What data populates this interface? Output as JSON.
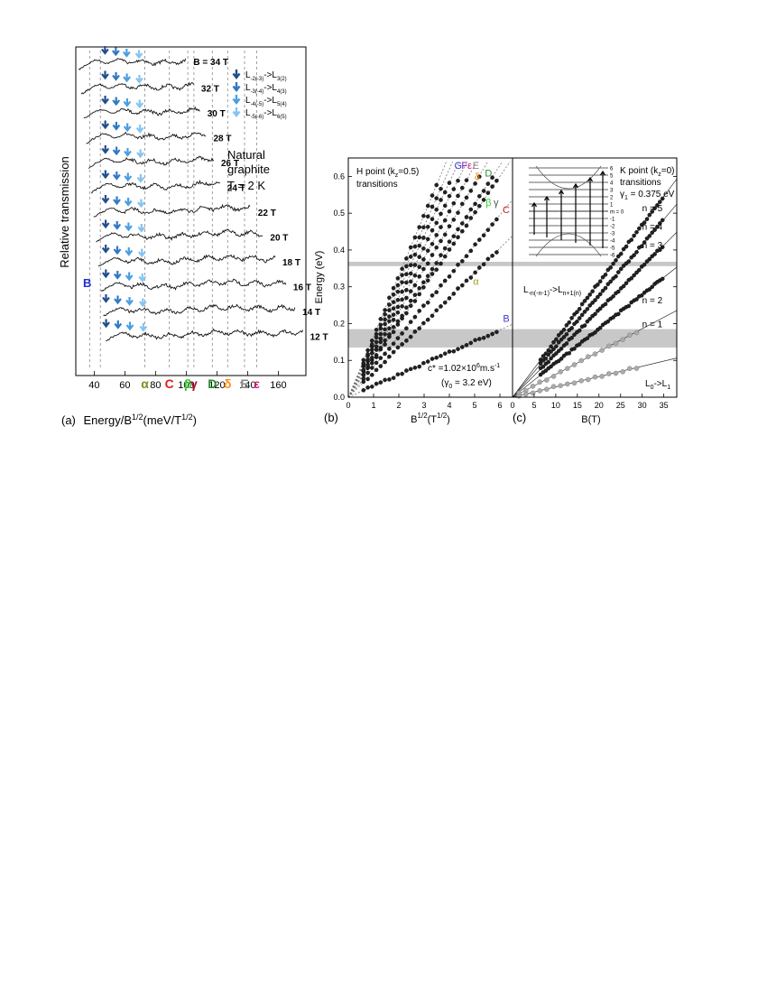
{
  "chart_data": [
    {
      "panel": "(a)",
      "type": "line",
      "xlabel": "Energy/B",
      "xlabel_sup": "1/2",
      "xlabel_units": "(meV/T",
      "xlabel_units_sup": "1/2",
      "xlabel_close": ")",
      "ylabel": "Relative transmission",
      "xlim": [
        28,
        178
      ],
      "x_ticks": [
        "40",
        "60",
        "80",
        "100",
        "120",
        "140",
        "160"
      ],
      "x_tick_values": [
        40,
        60,
        80,
        100,
        120,
        140,
        160
      ],
      "annotation_main": "Natural",
      "annotation_main2": "graphite",
      "annotation_temp": "T = 2 K",
      "series": [
        {
          "name": "B = 34 T",
          "B": 34,
          "x_end": 100
        },
        {
          "name": "32 T",
          "B": 32,
          "x_end": 105
        },
        {
          "name": "30 T",
          "B": 30,
          "x_end": 109
        },
        {
          "name": "28 T",
          "B": 28,
          "x_end": 113
        },
        {
          "name": "26 T",
          "B": 26,
          "x_end": 118
        },
        {
          "name": "24 T",
          "B": 24,
          "x_end": 122
        },
        {
          "name": "22 T",
          "B": 22,
          "x_end": 142
        },
        {
          "name": "20 T",
          "B": 20,
          "x_end": 150
        },
        {
          "name": "18 T",
          "B": 18,
          "x_end": 158
        },
        {
          "name": "16 T",
          "B": 16,
          "x_end": 165
        },
        {
          "name": "14 T",
          "B": 14,
          "x_end": 171
        },
        {
          "name": "12 T",
          "B": 12,
          "x_end": 176
        }
      ],
      "legend": [
        {
          "sub1": "-2(-3)",
          "sub2": "3(2)",
          "color": "#1f4e8c"
        },
        {
          "sub1": "-3(-4)",
          "sub2": "4(3)",
          "color": "#2f78c4"
        },
        {
          "sub1": "-4(-5)",
          "sub2": "5(4)",
          "color": "#4a9ee0"
        },
        {
          "sub1": "-5(-6)",
          "sub2": "6(5)",
          "color": "#86c3f0"
        }
      ],
      "legend_letter": "L",
      "legend_arrow": "->",
      "line_labels": [
        {
          "label": "α",
          "x": 73,
          "color": "#8a8a1a"
        },
        {
          "label": "C",
          "x": 89,
          "color": "#e0201a"
        },
        {
          "label": "β",
          "x": 101,
          "color": "#33cc33"
        },
        {
          "label": "γ",
          "x": 105,
          "color": "#b01030"
        },
        {
          "label": "D",
          "x": 117,
          "color": "#2e8b2e"
        },
        {
          "label": "δ",
          "x": 127,
          "color": "#ff8c1a"
        },
        {
          "label": "E",
          "x": 138,
          "color": "#888888"
        },
        {
          "label": "ε",
          "x": 146,
          "color": "#d0107a"
        }
      ],
      "b_label": {
        "label": "B",
        "color": "#1a2fcc"
      }
    },
    {
      "panel": "(b)",
      "type": "scatter",
      "xlabel": "B",
      "xlabel_sup": "1/2",
      "xlabel_units": "(T",
      "xlabel_units_sup": "1/2",
      "xlabel_close": ")",
      "ylabel": "Energy (eV)",
      "xlim": [
        0,
        6.5
      ],
      "ylim": [
        0,
        0.65
      ],
      "x_ticks": [
        "0",
        "1",
        "2",
        "3",
        "4",
        "5",
        "6"
      ],
      "x_tick_values": [
        0,
        1,
        2,
        3,
        4,
        5,
        6
      ],
      "y_ticks": [
        "0.0",
        "0.1",
        "0.2",
        "0.3",
        "0.4",
        "0.5",
        "0.6"
      ],
      "y_tick_values": [
        0,
        0.1,
        0.2,
        0.3,
        0.4,
        0.5,
        0.6
      ],
      "annotation_point": "H point (k",
      "annotation_point_sub": "z",
      "annotation_point_end": "=0.5)",
      "annotation_trans": "transitions",
      "annotation_c": "c* =1.02×10",
      "annotation_c_sup": "6",
      "annotation_c_unit": "m.s",
      "annotation_c_unit_sup": "-1",
      "annotation_gamma": "(γ",
      "annotation_gamma_sub": "0",
      "annotation_gamma_end": " = 3.2 eV)",
      "grey_bands": [
        [
          0.135,
          0.185
        ],
        [
          0.356,
          0.368
        ]
      ],
      "series": [
        {
          "label": "B",
          "slope": 0.0305,
          "color": "#3a3ad8"
        },
        {
          "label": "α",
          "slope": 0.0675,
          "color": "#a0a020"
        },
        {
          "label": "C",
          "slope": 0.0825,
          "color": "#d02020"
        },
        {
          "label": "β",
          "slope": 0.1,
          "color": "#33cc33"
        },
        {
          "label": "γ",
          "slope": 0.105,
          "color": "#555555"
        },
        {
          "label": "D",
          "slope": 0.116,
          "color": "#2e8b2e"
        },
        {
          "label": "δ",
          "slope": 0.126,
          "color": "#ff8c1a"
        },
        {
          "label": "E",
          "slope": 0.136,
          "color": "#888888"
        },
        {
          "label": "ε",
          "slope": 0.146,
          "color": "#d0107a"
        },
        {
          "label": "F",
          "slope": 0.155,
          "color": "#7a1aaa"
        },
        {
          "label": "G",
          "slope": 0.165,
          "color": "#3a3ad8"
        }
      ],
      "labels_top": [
        "G",
        "F",
        "ε",
        "E",
        "δ",
        "D",
        "β",
        "γ",
        "C",
        "α",
        "B"
      ]
    },
    {
      "panel": "(c)",
      "type": "scatter",
      "xlabel": "B(T)",
      "xlim": [
        0,
        38
      ],
      "ylim": [
        0,
        0.65
      ],
      "x_ticks": [
        "0",
        "5",
        "10",
        "15",
        "20",
        "25",
        "30",
        "35"
      ],
      "x_tick_values": [
        0,
        5,
        10,
        15,
        20,
        25,
        30,
        35
      ],
      "annotation_point": "K point (k",
      "annotation_point_sub": "z",
      "annotation_point_end": "=0)",
      "annotation_trans": "transitions",
      "annotation_gamma": "γ",
      "annotation_gamma_sub": "1",
      "annotation_gamma_end": " = 0.375 eV",
      "grey_bands": [
        [
          0.135,
          0.185
        ],
        [
          0.356,
          0.368
        ]
      ],
      "series": [
        {
          "label": "n = 5",
          "slope": 0.0156
        },
        {
          "label": "n = 4",
          "slope": 0.0138
        },
        {
          "label": "n = 3",
          "slope": 0.0118
        },
        {
          "label": "n = 2",
          "slope": 0.0093
        },
        {
          "label": "n = 1",
          "slope": 0.0062
        },
        {
          "label": "L0->L1",
          "slope": 0.0028
        }
      ],
      "label_transition": "L",
      "label_transition_sub1": "-n(-n-1)",
      "label_transition_mid": "->L",
      "label_transition_sub2": "n+1(n)",
      "label_l0": "L",
      "label_l0_sub1": "0",
      "label_l0_mid": "->L",
      "label_l0_sub2": "1",
      "inset_levels": [
        "6",
        "5",
        "4",
        "3",
        "2",
        "1",
        "m = 0",
        "-1",
        "-2",
        "-3",
        "-4",
        "-5",
        "-6"
      ]
    }
  ]
}
